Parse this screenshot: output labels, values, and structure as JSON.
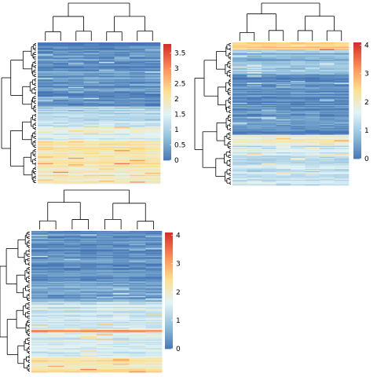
{
  "palette": {
    "low": "#4575b4",
    "mid_low": "#91bfdb",
    "mid": "#e0f3f8",
    "mid_high": "#fee090",
    "high_mid": "#fc8d59",
    "high": "#d73027"
  },
  "chart_data": [
    {
      "type": "heatmap",
      "panel": "top-left",
      "columns": 8,
      "rows": 130,
      "value_range": [
        0,
        3.8
      ],
      "colorbar": {
        "ticks": [
          0,
          0.5,
          1,
          1.5,
          2,
          2.5,
          3,
          3.5
        ],
        "tick_labels": [
          "0",
          "0.5",
          "1",
          "1.5",
          "2",
          "2.5",
          "3",
          "3.5"
        ]
      },
      "row_profile": [
        {
          "from": 0.0,
          "to": 0.45,
          "value": 0.25,
          "note_values": "mostly low, blue"
        },
        {
          "from": 0.45,
          "to": 0.6,
          "value": 1.1
        },
        {
          "from": 0.6,
          "to": 0.7,
          "value": 1.5
        },
        {
          "from": 0.7,
          "to": 1.0,
          "value": 2.0
        }
      ]
    },
    {
      "type": "heatmap",
      "panel": "top-right",
      "columns": 8,
      "rows": 130,
      "value_range": [
        0,
        4.1
      ],
      "colorbar": {
        "ticks": [
          0,
          1,
          2,
          3,
          4
        ],
        "tick_labels": [
          "0",
          "1",
          "2",
          "3",
          "4"
        ]
      },
      "row_profile": [
        {
          "from": 0.0,
          "to": 0.05,
          "value": 2.4
        },
        {
          "from": 0.05,
          "to": 0.22,
          "value": 0.8
        },
        {
          "from": 0.22,
          "to": 0.64,
          "value": 0.25
        },
        {
          "from": 0.64,
          "to": 0.72,
          "value": 2.0
        },
        {
          "from": 0.72,
          "to": 1.0,
          "value": 1.4
        }
      ]
    },
    {
      "type": "heatmap",
      "panel": "bottom-left",
      "columns": 8,
      "rows": 130,
      "value_range": [
        0,
        4.1
      ],
      "colorbar": {
        "ticks": [
          0,
          1,
          2,
          3,
          4
        ],
        "tick_labels": [
          "0",
          "1",
          "2",
          "3",
          "4"
        ]
      },
      "row_profile": [
        {
          "from": 0.0,
          "to": 0.35,
          "value": 0.25
        },
        {
          "from": 0.35,
          "to": 0.5,
          "value": 0.55
        },
        {
          "from": 0.5,
          "to": 0.7,
          "value": 1.5
        },
        {
          "from": 0.7,
          "to": 0.71,
          "value": 3.3
        },
        {
          "from": 0.71,
          "to": 0.9,
          "value": 1.6
        },
        {
          "from": 0.9,
          "to": 1.0,
          "value": 2.2
        }
      ]
    }
  ]
}
